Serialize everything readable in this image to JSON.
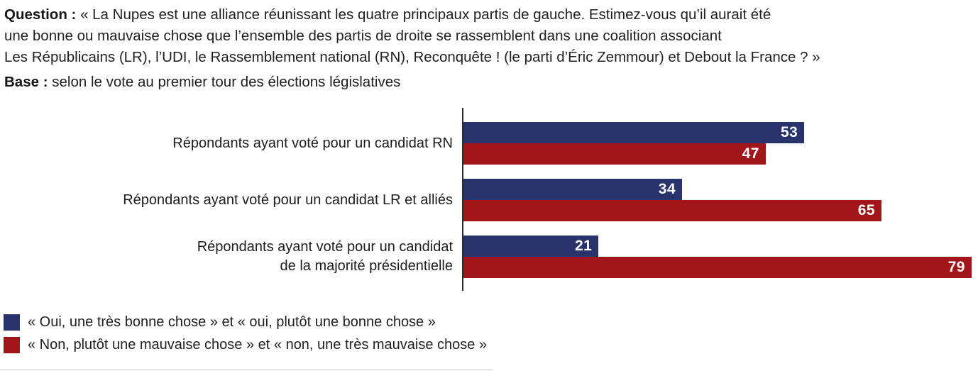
{
  "header": {
    "question_bold": "Question :",
    "question_lines": [
      "« La Nupes est une alliance réunissant les quatre principaux partis de gauche. Estimez-vous qu’il aurait été",
      "une bonne ou mauvaise chose que l’ensemble des partis de droite se rassemblent dans une coalition associant",
      "Les Républicains (LR), l’UDI, le Rassemblement national (RN), Reconquête ! (le parti d’Éric Zemmour) et Debout la France ? »"
    ],
    "base_bold": "Base :",
    "base_text": "selon le vote au premier tour des élections législatives"
  },
  "chart_data": {
    "type": "bar",
    "orientation": "horizontal",
    "title": "",
    "xlabel": "",
    "ylabel": "",
    "xlim": [
      0,
      80
    ],
    "grid": false,
    "legend_position": "bottom-left",
    "axis_line_color": "#2b2b2b",
    "value_label_style": "inside-end, white, bold",
    "categories": [
      "Répondants ayant voté pour un candidat RN",
      "Répondants ayant voté pour un candidat LR et alliés",
      "Répondants ayant voté pour un candidat de la majorité présidentielle"
    ],
    "category_lines": [
      [
        "Répondants ayant voté pour un candidat RN"
      ],
      [
        "Répondants ayant voté pour un candidat LR et alliés"
      ],
      [
        "Répondants ayant voté pour un candidat",
        "de la majorité présidentielle"
      ]
    ],
    "series": [
      {
        "name": "« Oui, une très bonne chose » et « oui, plutôt une bonne chose »",
        "color": "#27336A",
        "values": [
          53,
          34,
          21
        ]
      },
      {
        "name": "« Non, plutôt une mauvaise chose » et « non, une très mauvaise chose »",
        "color": "#A2151A",
        "values": [
          47,
          65,
          79
        ]
      }
    ]
  }
}
